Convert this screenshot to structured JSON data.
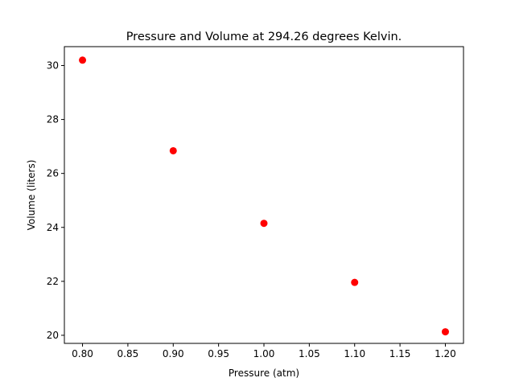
{
  "chart_data": {
    "type": "scatter",
    "title": "Pressure and Volume at 294.26 degrees Kelvin.",
    "xlabel": "Pressure (atm)",
    "ylabel": "Volume (liters)",
    "xlim": [
      0.78,
      1.22
    ],
    "ylim": [
      19.7,
      30.7
    ],
    "xticks": [
      0.8,
      0.85,
      0.9,
      0.95,
      1.0,
      1.05,
      1.1,
      1.15,
      1.2
    ],
    "xtick_labels": [
      "0.80",
      "0.85",
      "0.90",
      "0.95",
      "1.00",
      "1.05",
      "1.10",
      "1.15",
      "1.20"
    ],
    "yticks": [
      20,
      22,
      24,
      26,
      28,
      30
    ],
    "ytick_labels": [
      "20",
      "22",
      "24",
      "26",
      "28",
      "30"
    ],
    "grid": false,
    "series": [
      {
        "color": "#ff0000",
        "marker": "circle",
        "points": [
          {
            "x": 0.8,
            "y": 30.2
          },
          {
            "x": 0.9,
            "y": 26.84
          },
          {
            "x": 1.0,
            "y": 24.15
          },
          {
            "x": 1.1,
            "y": 21.96
          },
          {
            "x": 1.2,
            "y": 20.13
          }
        ]
      }
    ]
  }
}
